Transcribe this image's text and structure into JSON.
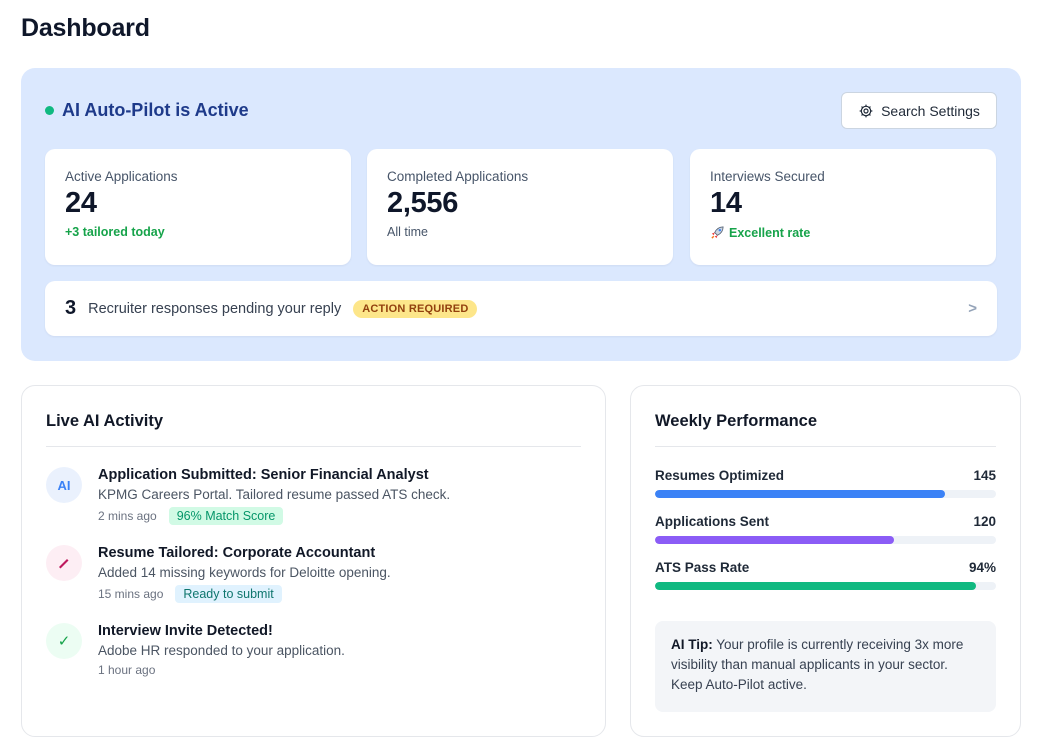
{
  "page": {
    "title": "Dashboard"
  },
  "autopilot": {
    "status": "AI Auto-Pilot is Active",
    "settings_label": "Search Settings",
    "stats": [
      {
        "label": "Active Applications",
        "value": "24",
        "sub": "+3 tailored today",
        "sub_icon": ""
      },
      {
        "label": "Completed Applications",
        "value": "2,556",
        "sub": "All time",
        "sub_icon": ""
      },
      {
        "label": "Interviews Secured",
        "value": "14",
        "sub": "Excellent rate",
        "sub_icon": "rocket-icon"
      }
    ],
    "pending": {
      "count": "3",
      "text": "Recruiter responses pending your reply",
      "badge": "ACTION REQUIRED",
      "arrow": ">"
    }
  },
  "activity": {
    "title": "Live AI Activity",
    "items": [
      {
        "icon": "AI",
        "title": "Application Submitted: Senior Financial Analyst",
        "desc": "KPMG Careers Portal. Tailored resume passed ATS check.",
        "time": "2 mins ago",
        "tag": "96% Match Score"
      },
      {
        "icon": "pencil-icon",
        "title": "Resume Tailored: Corporate Accountant",
        "desc": "Added 14 missing keywords for Deloitte opening.",
        "time": "15 mins ago",
        "tag": "Ready to submit"
      },
      {
        "icon": "✓",
        "title": "Interview Invite Detected!",
        "desc": "Adobe HR responded to your application.",
        "time": "1 hour ago",
        "tag": ""
      }
    ]
  },
  "performance": {
    "title": "Weekly Performance",
    "metrics": [
      {
        "label": "Resumes Optimized",
        "value": "145",
        "fill": 0.85,
        "color": "#3b82f6"
      },
      {
        "label": "Applications Sent",
        "value": "120",
        "fill": 0.7,
        "color": "#8b5cf6"
      },
      {
        "label": "ATS Pass Rate",
        "value": "94%",
        "fill": 0.94,
        "color": "#10b981"
      }
    ],
    "tip_label": "AI Tip:",
    "tip_text": " Your profile is currently receiving 3x more visibility than manual applicants in your sector. Keep Auto-Pilot active."
  }
}
